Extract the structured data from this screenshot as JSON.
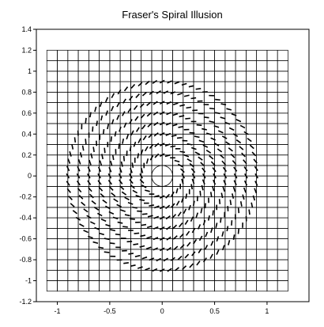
{
  "chart_data": {
    "type": "line",
    "title": "Fraser's Spiral Illusion",
    "xlabel": "",
    "ylabel": "",
    "xlim": [
      -1.2,
      1.4
    ],
    "ylim": [
      -1.2,
      1.4
    ],
    "x_ticks": [
      -1,
      -0.5,
      0,
      0.5,
      1
    ],
    "x_tick_labels": [
      "-1",
      "-0.5",
      "0",
      "0.5",
      "1"
    ],
    "y_ticks": [
      -1.2,
      -1,
      -0.8,
      -0.6,
      -0.4,
      -0.2,
      0,
      0.2,
      0.4,
      0.6,
      0.8,
      1,
      1.2,
      1.4
    ],
    "y_tick_labels": [
      "-1.2",
      "-1",
      "-0.8",
      "-0.6",
      "-0.4",
      "-0.2",
      "0",
      "0.2",
      "0.4",
      "0.6",
      "0.8",
      "1",
      "1.2",
      "1.4"
    ],
    "grid": false,
    "background_pattern": {
      "type": "checkerboard-outline",
      "cell_size": 0.1,
      "x_range": [
        -1.1,
        1.2
      ],
      "y_range": [
        -1.1,
        1.2
      ]
    },
    "concentric_circles": {
      "radii": [
        0.1,
        0.2,
        0.3,
        0.4,
        0.5,
        0.6,
        0.7,
        0.8,
        0.9
      ],
      "solid_radii": [
        0.1
      ],
      "segments_per_circle": [
        12,
        24,
        36,
        44,
        52,
        60,
        68,
        74,
        80
      ],
      "tilt_degrees": 30
    },
    "colors": {
      "line": "#000000",
      "background": "#ffffff"
    }
  }
}
